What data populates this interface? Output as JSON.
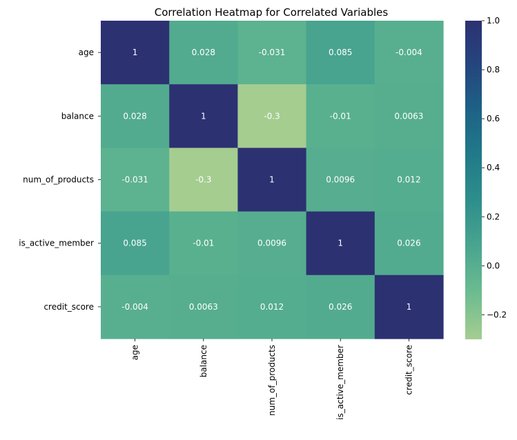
{
  "chart_data": {
    "type": "heatmap",
    "title": "Correlation Heatmap for Correlated Variables",
    "row_labels": [
      "age",
      "balance",
      "num_of_products",
      "is_active_member",
      "credit_score"
    ],
    "col_labels": [
      "age",
      "balance",
      "num_of_products",
      "is_active_member",
      "credit_score"
    ],
    "values": [
      [
        1,
        0.028,
        -0.031,
        0.085,
        -0.004
      ],
      [
        0.028,
        1,
        -0.3,
        -0.01,
        0.0063
      ],
      [
        -0.031,
        -0.3,
        1,
        0.0096,
        0.012
      ],
      [
        0.085,
        -0.01,
        0.0096,
        1,
        0.026
      ],
      [
        -0.004,
        0.0063,
        0.012,
        0.026,
        1
      ]
    ],
    "value_labels": [
      [
        "1",
        "0.028",
        "-0.031",
        "0.085",
        "-0.004"
      ],
      [
        "0.028",
        "1",
        "-0.3",
        "-0.01",
        "0.0063"
      ],
      [
        "-0.031",
        "-0.3",
        "1",
        "0.0096",
        "0.012"
      ],
      [
        "0.085",
        "-0.01",
        "0.0096",
        "1",
        "0.026"
      ],
      [
        "-0.004",
        "0.0063",
        "0.012",
        "0.026",
        "1"
      ]
    ],
    "colorbar": {
      "min": -0.3,
      "max": 1.0,
      "ticks": [
        -0.2,
        0.0,
        0.2,
        0.4,
        0.6,
        0.8,
        1.0
      ],
      "tick_labels": [
        "−0.2",
        "0.0",
        "0.2",
        "0.4",
        "0.6",
        "0.8",
        "1.0"
      ]
    },
    "colormap": "crest",
    "colormap_stops": [
      "#a5cd90",
      "#6dbc90",
      "#4aa68f",
      "#2f8f8c",
      "#217b89",
      "#1d6386",
      "#24467e",
      "#2c3172"
    ],
    "annotation_color": "#ffffff",
    "grid": false
  }
}
